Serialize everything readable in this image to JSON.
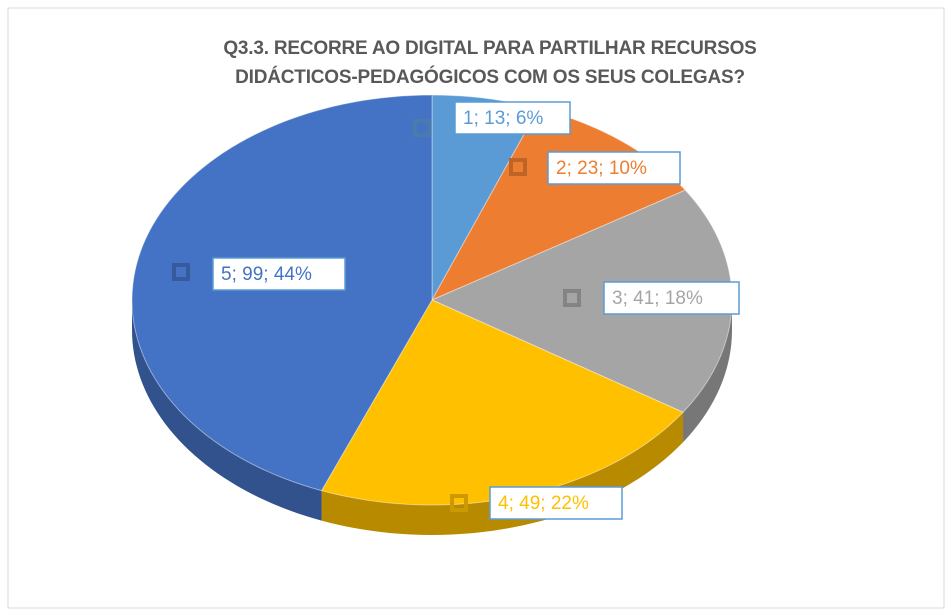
{
  "chart_data": {
    "type": "pie",
    "title": "Q3.3. RECORRE AO DIGITAL PARA PARTILHAR RECURSOS\nDIDÁCTICOS-PEDAGÓGICOS COM OS SEUS COLEGAS?",
    "categories": [
      "1",
      "2",
      "3",
      "4",
      "5"
    ],
    "values": [
      13,
      23,
      41,
      49,
      99
    ],
    "value_labels": [
      "1; 13; 6%",
      "2; 23; 10%",
      "3; 41; 18%",
      "4; 49; 22%",
      "5; 99; 44%"
    ],
    "colors": [
      "#5b9bd5",
      "#ed7d31",
      "#a5a5a5",
      "#ffc000",
      "#4472c4"
    ]
  }
}
